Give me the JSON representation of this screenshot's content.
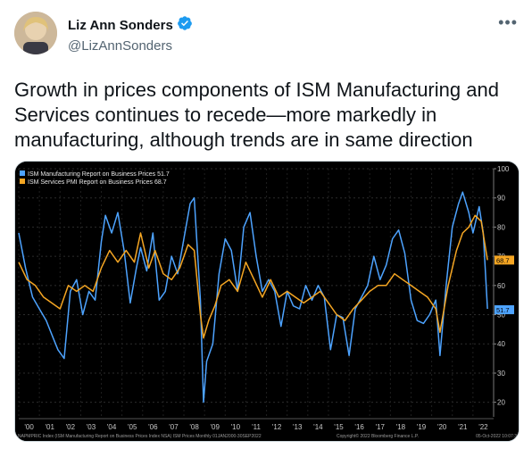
{
  "tweet": {
    "author_name": "Liz Ann Sonders",
    "author_handle": "@LizAnnSonders",
    "more_icon": "more-horizontal-icon",
    "verified_icon": "verified-badge-icon",
    "verified_color": "#1d9bf0",
    "text": "Growth in prices components of ISM Manufacturing and Services continues to recede—more markedly in manufacturing, although trends are in same direction"
  },
  "chart_data": {
    "type": "line",
    "background": "#000000",
    "legend_position": "top-left",
    "ylim": [
      15,
      100
    ],
    "y_ticks": [
      20,
      30,
      40,
      50,
      60,
      70,
      80,
      90,
      100
    ],
    "y_axis_side": "right",
    "x_ticks": [
      "'00",
      "'01",
      "'02",
      "'03",
      "'04",
      "'05",
      "'06",
      "'07",
      "'08",
      "'09",
      "'10",
      "'11",
      "'12",
      "'13",
      "'14",
      "'15",
      "'16",
      "'17",
      "'18",
      "'19",
      "'20",
      "'21",
      "'22"
    ],
    "footer_left": "NAPMPRIC Index (ISM Manufacturing Report on Business Prices Index NSA) ISM Prices  Monthly 01JAN2000-30SEP2022",
    "footer_mid": "Copyright© 2022 Bloomberg Finance L.P.",
    "footer_right": "05-Oct-2022 10:07:3",
    "series": [
      {
        "name": "ISM Manufacturing Report on Business Prices",
        "last_value": "51.7",
        "color": "#4da3ff",
        "x": [
          2000.0,
          2000.33,
          2000.67,
          2001.0,
          2001.33,
          2001.67,
          2001.9,
          2002.2,
          2002.5,
          2002.8,
          2003.1,
          2003.4,
          2003.7,
          2004.0,
          2004.2,
          2004.5,
          2004.8,
          2005.1,
          2005.4,
          2005.7,
          2005.9,
          2006.2,
          2006.5,
          2006.8,
          2007.1,
          2007.4,
          2007.7,
          2008.0,
          2008.3,
          2008.5,
          2008.8,
          2008.95,
          2009.1,
          2009.4,
          2009.7,
          2010.0,
          2010.3,
          2010.6,
          2010.9,
          2011.2,
          2011.5,
          2011.8,
          2012.1,
          2012.4,
          2012.7,
          2013.0,
          2013.3,
          2013.6,
          2013.9,
          2014.2,
          2014.5,
          2014.8,
          2015.1,
          2015.4,
          2015.7,
          2016.0,
          2016.3,
          2016.6,
          2016.9,
          2017.2,
          2017.5,
          2017.8,
          2018.1,
          2018.4,
          2018.7,
          2019.0,
          2019.3,
          2019.6,
          2019.9,
          2020.2,
          2020.4,
          2020.7,
          2021.0,
          2021.3,
          2021.5,
          2021.8,
          2022.0,
          2022.3,
          2022.5,
          2022.7
        ],
        "values": [
          78,
          66,
          56,
          52,
          48,
          42,
          38,
          35,
          58,
          62,
          50,
          58,
          55,
          75,
          84,
          78,
          85,
          72,
          54,
          66,
          73,
          65,
          78,
          55,
          58,
          70,
          64,
          76,
          88,
          90,
          55,
          20,
          34,
          40,
          64,
          76,
          72,
          58,
          80,
          85,
          70,
          58,
          62,
          58,
          46,
          58,
          53,
          52,
          60,
          55,
          60,
          56,
          38,
          50,
          49,
          36,
          52,
          56,
          60,
          70,
          62,
          67,
          76,
          79,
          71,
          55,
          48,
          47,
          50,
          55,
          36,
          60,
          80,
          88,
          92,
          85,
          78,
          87,
          78,
          52
        ]
      },
      {
        "name": "ISM Services PMI Report on Business Prices",
        "last_value": "68.7",
        "color": "#f5a623",
        "x": [
          2000.0,
          2000.4,
          2000.8,
          2001.2,
          2001.6,
          2002.0,
          2002.4,
          2002.8,
          2003.2,
          2003.6,
          2004.0,
          2004.4,
          2004.8,
          2005.2,
          2005.6,
          2005.9,
          2006.3,
          2006.6,
          2007.0,
          2007.4,
          2007.8,
          2008.2,
          2008.5,
          2008.8,
          2008.95,
          2009.2,
          2009.5,
          2009.8,
          2010.2,
          2010.6,
          2011.0,
          2011.4,
          2011.8,
          2012.2,
          2012.6,
          2013.0,
          2013.4,
          2013.8,
          2014.2,
          2014.6,
          2015.0,
          2015.4,
          2015.8,
          2016.2,
          2016.6,
          2017.0,
          2017.4,
          2017.8,
          2018.2,
          2018.6,
          2019.0,
          2019.4,
          2019.8,
          2020.2,
          2020.4,
          2020.8,
          2021.2,
          2021.5,
          2021.8,
          2022.1,
          2022.4,
          2022.7
        ],
        "values": [
          68,
          62,
          60,
          56,
          54,
          52,
          60,
          58,
          60,
          58,
          66,
          72,
          68,
          72,
          68,
          78,
          66,
          72,
          64,
          62,
          66,
          74,
          72,
          50,
          42,
          48,
          53,
          60,
          62,
          58,
          68,
          62,
          56,
          62,
          56,
          58,
          56,
          54,
          56,
          58,
          54,
          50,
          48,
          52,
          55,
          58,
          60,
          60,
          64,
          62,
          60,
          58,
          56,
          52,
          44,
          60,
          72,
          78,
          80,
          84,
          82,
          68.7
        ]
      }
    ]
  }
}
